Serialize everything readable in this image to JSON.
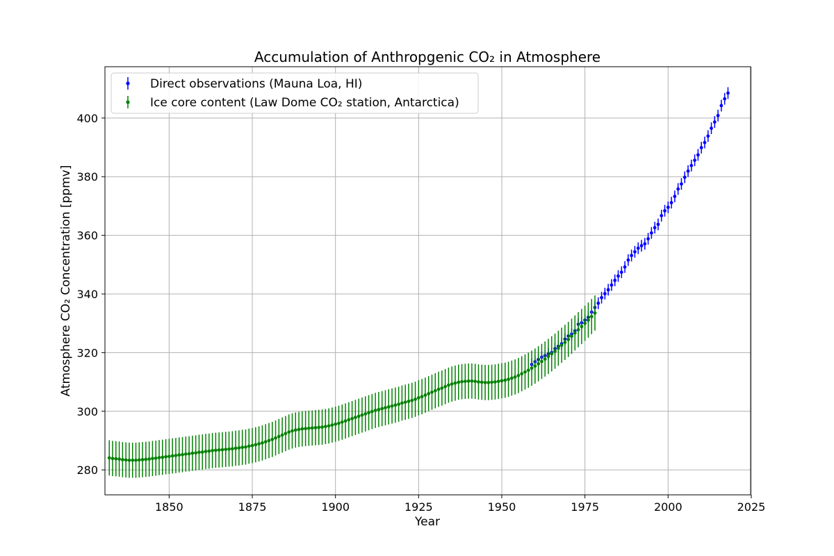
{
  "chart_data": {
    "type": "scatter",
    "title": "Accumulation of Anthropgenic CO₂ in Atmosphere",
    "xlabel": "Year",
    "ylabel": "Atmosphere CO₂ Concentration [ppmv]",
    "xlim": [
      1830.7,
      2024.8
    ],
    "ylim": [
      271.5,
      417.5
    ],
    "xticks": [
      1850,
      1875,
      1900,
      1925,
      1950,
      1975,
      2000,
      2025
    ],
    "yticks": [
      280,
      300,
      320,
      340,
      360,
      380,
      400
    ],
    "grid": true,
    "legend_position": "top-left",
    "series": [
      {
        "name": "Direct observations (Mauna Loa, HI)",
        "color": "#0000ff",
        "error": 2.0,
        "x": [
          1959,
          1960,
          1961,
          1962,
          1963,
          1964,
          1965,
          1966,
          1967,
          1968,
          1969,
          1970,
          1971,
          1972,
          1973,
          1974,
          1975,
          1976,
          1977,
          1978,
          1979,
          1980,
          1981,
          1982,
          1983,
          1984,
          1985,
          1986,
          1987,
          1988,
          1989,
          1990,
          1991,
          1992,
          1993,
          1994,
          1995,
          1996,
          1997,
          1998,
          1999,
          2000,
          2001,
          2002,
          2003,
          2004,
          2005,
          2006,
          2007,
          2008,
          2009,
          2010,
          2011,
          2012,
          2013,
          2014,
          2015,
          2016,
          2017,
          2018
        ],
        "y": [
          315.97,
          316.91,
          317.64,
          318.45,
          318.99,
          319.62,
          320.04,
          321.38,
          322.16,
          323.04,
          324.62,
          325.68,
          326.32,
          327.45,
          329.68,
          330.18,
          331.11,
          332.04,
          333.83,
          335.4,
          336.84,
          338.75,
          340.11,
          341.45,
          343.05,
          344.65,
          346.12,
          347.42,
          349.19,
          351.57,
          353.12,
          354.39,
          355.61,
          356.45,
          357.1,
          358.83,
          360.82,
          362.61,
          363.73,
          366.7,
          368.38,
          369.55,
          371.14,
          373.28,
          375.8,
          377.52,
          379.8,
          381.9,
          383.79,
          385.6,
          387.43,
          389.9,
          391.65,
          393.85,
          396.52,
          398.65,
          400.83,
          404.24,
          406.55,
          408.52
        ]
      },
      {
        "name": "Ice core content (Law Dome CO₂ station, Antarctica)",
        "color": "#008000",
        "error": 6.0,
        "x": [
          1832,
          1833,
          1834,
          1835,
          1836,
          1837,
          1838,
          1839,
          1840,
          1841,
          1842,
          1843,
          1844,
          1845,
          1846,
          1847,
          1848,
          1849,
          1850,
          1851,
          1852,
          1853,
          1854,
          1855,
          1856,
          1857,
          1858,
          1859,
          1860,
          1861,
          1862,
          1863,
          1864,
          1865,
          1866,
          1867,
          1868,
          1869,
          1870,
          1871,
          1872,
          1873,
          1874,
          1875,
          1876,
          1877,
          1878,
          1879,
          1880,
          1881,
          1882,
          1883,
          1884,
          1885,
          1886,
          1887,
          1888,
          1889,
          1890,
          1891,
          1892,
          1893,
          1894,
          1895,
          1896,
          1897,
          1898,
          1899,
          1900,
          1901,
          1902,
          1903,
          1904,
          1905,
          1906,
          1907,
          1908,
          1909,
          1910,
          1911,
          1912,
          1913,
          1914,
          1915,
          1916,
          1917,
          1918,
          1919,
          1920,
          1921,
          1922,
          1923,
          1924,
          1925,
          1926,
          1927,
          1928,
          1929,
          1930,
          1931,
          1932,
          1933,
          1934,
          1935,
          1936,
          1937,
          1938,
          1939,
          1940,
          1941,
          1942,
          1943,
          1944,
          1945,
          1946,
          1947,
          1948,
          1949,
          1950,
          1951,
          1952,
          1953,
          1954,
          1955,
          1956,
          1957,
          1958,
          1959,
          1960,
          1961,
          1962,
          1963,
          1964,
          1965,
          1966,
          1967,
          1968,
          1969,
          1970,
          1971,
          1972,
          1973,
          1974,
          1975,
          1976,
          1977,
          1978
        ],
        "y": [
          284.1,
          283.9,
          283.8,
          283.7,
          283.5,
          283.4,
          283.3,
          283.3,
          283.3,
          283.4,
          283.5,
          283.6,
          283.7,
          283.9,
          284.0,
          284.2,
          284.3,
          284.5,
          284.6,
          284.8,
          284.9,
          285.1,
          285.2,
          285.4,
          285.5,
          285.7,
          285.8,
          286.0,
          286.1,
          286.3,
          286.4,
          286.6,
          286.7,
          286.8,
          286.9,
          287.0,
          287.1,
          287.2,
          287.4,
          287.5,
          287.7,
          287.8,
          288.1,
          288.3,
          288.6,
          288.9,
          289.2,
          289.6,
          290.0,
          290.4,
          290.9,
          291.4,
          291.9,
          292.4,
          292.9,
          293.3,
          293.6,
          293.8,
          294.0,
          294.1,
          294.2,
          294.3,
          294.4,
          294.5,
          294.6,
          294.8,
          295.0,
          295.3,
          295.6,
          295.9,
          296.3,
          296.7,
          297.1,
          297.5,
          297.9,
          298.3,
          298.7,
          299.1,
          299.5,
          299.9,
          300.3,
          300.6,
          300.9,
          301.2,
          301.5,
          301.8,
          302.1,
          302.4,
          302.8,
          303.1,
          303.4,
          303.7,
          304.1,
          304.6,
          305.0,
          305.5,
          306.0,
          306.5,
          307.0,
          307.5,
          307.9,
          308.4,
          308.9,
          309.3,
          309.6,
          309.9,
          310.1,
          310.2,
          310.3,
          310.3,
          310.2,
          310.0,
          309.9,
          309.8,
          309.8,
          309.9,
          310.0,
          310.2,
          310.4,
          310.6,
          310.9,
          311.3,
          311.7,
          312.2,
          312.8,
          313.4,
          314.0,
          314.7,
          315.4,
          316.2,
          317.0,
          317.8,
          318.7,
          319.6,
          320.5,
          321.5,
          322.5,
          323.5,
          324.5,
          325.6,
          326.7,
          327.8,
          328.9,
          330.0,
          331.1,
          332.3,
          333.5
        ]
      }
    ]
  }
}
